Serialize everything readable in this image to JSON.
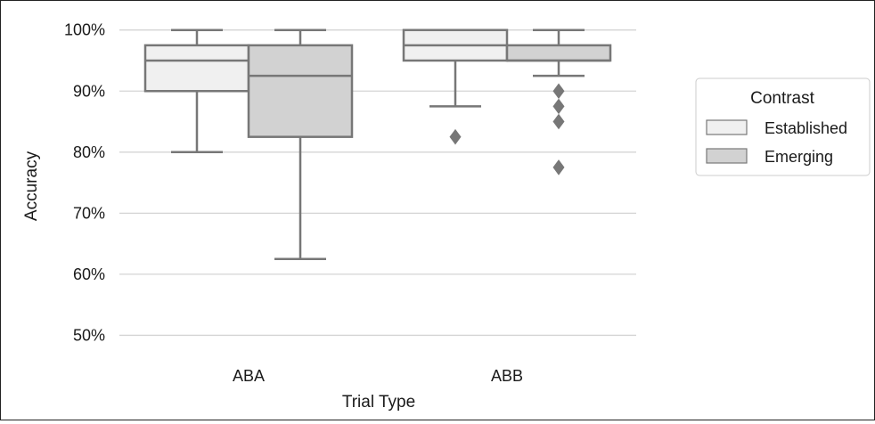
{
  "chart_data": {
    "type": "box",
    "xlabel": "Trial Type",
    "ylabel": "Accuracy",
    "ylim": [
      47,
      102
    ],
    "yticks": [
      50,
      60,
      70,
      80,
      90,
      100
    ],
    "ytick_labels": [
      "50%",
      "60%",
      "70%",
      "80%",
      "90%",
      "100%"
    ],
    "grid": true,
    "categories": [
      "ABA",
      "ABB"
    ],
    "legend": {
      "title": "Contrast",
      "placement": "right"
    },
    "series": [
      {
        "name": "Established",
        "color": "#f0f0f0",
        "boxes": [
          {
            "category": "ABA",
            "whisker_low": 80,
            "q1": 90,
            "median": 95,
            "q3": 97.5,
            "whisker_high": 100,
            "outliers": []
          },
          {
            "category": "ABB",
            "whisker_low": 87.5,
            "q1": 95,
            "median": 97.5,
            "q3": 100,
            "whisker_high": 100,
            "outliers": [
              82.5
            ]
          }
        ]
      },
      {
        "name": "Emerging",
        "color": "#d2d2d2",
        "boxes": [
          {
            "category": "ABA",
            "whisker_low": 62.5,
            "q1": 82.5,
            "median": 92.5,
            "q3": 97.5,
            "whisker_high": 100,
            "outliers": []
          },
          {
            "category": "ABB",
            "whisker_low": 92.5,
            "q1": 95,
            "median": 95,
            "q3": 97.5,
            "whisker_high": 100,
            "outliers": [
              90,
              87.5,
              85,
              77.5
            ]
          }
        ]
      }
    ]
  }
}
